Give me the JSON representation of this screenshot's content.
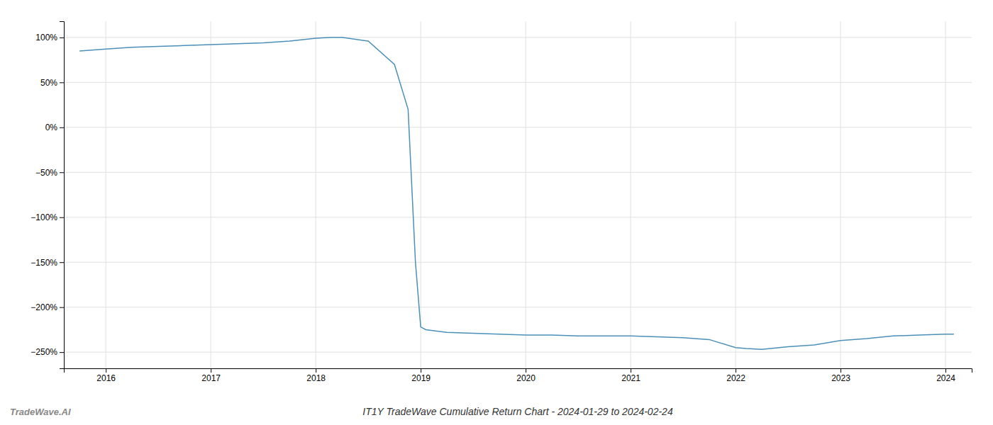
{
  "chart_data": {
    "type": "line",
    "title": "IT1Y TradeWave Cumulative Return Chart - 2024-01-29 to 2024-02-24",
    "annotations": [
      "TradeWave.AI"
    ],
    "x": [
      2015.75,
      2016.0,
      2016.25,
      2016.5,
      2016.75,
      2017.0,
      2017.25,
      2017.5,
      2017.75,
      2018.0,
      2018.15,
      2018.25,
      2018.5,
      2018.75,
      2018.88,
      2018.95,
      2019.0,
      2019.05,
      2019.25,
      2019.5,
      2019.75,
      2020.0,
      2020.25,
      2020.5,
      2020.75,
      2021.0,
      2021.25,
      2021.5,
      2021.75,
      2022.0,
      2022.1,
      2022.25,
      2022.5,
      2022.75,
      2023.0,
      2023.25,
      2023.5,
      2023.75,
      2024.0,
      2024.08
    ],
    "values": [
      85,
      87,
      89,
      90,
      91,
      92,
      93,
      94,
      96,
      99,
      100,
      100,
      96,
      70,
      20,
      -150,
      -222,
      -225,
      -228,
      -229,
      -230,
      -231,
      -231,
      -232,
      -232,
      -232,
      -233,
      -234,
      -236,
      -245,
      -246,
      -247,
      -244,
      -242,
      -237,
      -235,
      -232,
      -231,
      -230,
      -230
    ],
    "color": "#4a90b8",
    "xlim": [
      2015.6,
      2024.25
    ],
    "ylim": [
      -268,
      118
    ],
    "xticks": [
      2016,
      2017,
      2018,
      2019,
      2020,
      2021,
      2022,
      2023,
      2024
    ],
    "yticks": [
      {
        "value": 100,
        "label": "100%"
      },
      {
        "value": 50,
        "label": "50%"
      },
      {
        "value": 0,
        "label": "0%"
      },
      {
        "value": -50,
        "label": "−50%"
      },
      {
        "value": -100,
        "label": "−100%"
      },
      {
        "value": -150,
        "label": "−150%"
      },
      {
        "value": -200,
        "label": "−200%"
      },
      {
        "value": -250,
        "label": "−250%"
      }
    ],
    "grid": true
  }
}
